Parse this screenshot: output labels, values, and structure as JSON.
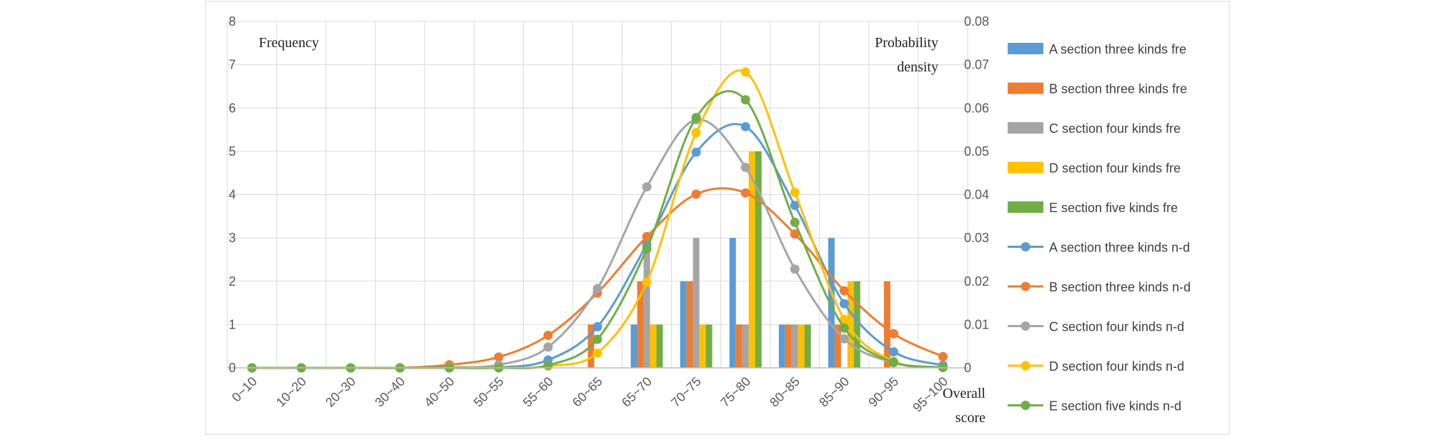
{
  "chart_data": {
    "type": "bar",
    "categories": [
      "0~10",
      "10~20",
      "20~30",
      "30~40",
      "40~50",
      "50~55",
      "55~60",
      "60~65",
      "65~70",
      "70~75",
      "75~80",
      "80~85",
      "85~90",
      "90~95",
      "95~100"
    ],
    "y_left_label": "Frequency",
    "y_right_label_line1": "Probability",
    "y_right_label_line2": "density",
    "x_label_line1": "Overall",
    "x_label_line2": "score",
    "y_left_range": [
      0,
      8
    ],
    "y_right_range": [
      0,
      0.08
    ],
    "y_left_ticks": [
      "0",
      "1",
      "2",
      "3",
      "4",
      "5",
      "6",
      "7",
      "8"
    ],
    "y_right_ticks": [
      "0",
      "0.01",
      "0.02",
      "0.03",
      "0.04",
      "0.05",
      "0.06",
      "0.07",
      "0.08"
    ],
    "grid": "on",
    "legend_position": "right",
    "bar_series": [
      {
        "name": "A section three kinds fre",
        "color": "#5B9BD5",
        "values": [
          0,
          0,
          0,
          0,
          0,
          0,
          0,
          0,
          1,
          2,
          3,
          1,
          3,
          0,
          0
        ]
      },
      {
        "name": "B section three kinds fre",
        "color": "#ED7D31",
        "values": [
          0,
          0,
          0,
          0,
          0,
          0,
          0,
          1,
          2,
          2,
          1,
          1,
          1,
          2,
          0
        ]
      },
      {
        "name": "C section four kinds fre",
        "color": "#A5A5A5",
        "values": [
          0,
          0,
          0,
          0,
          0,
          0,
          0,
          0,
          3,
          3,
          1,
          1,
          0,
          0,
          0
        ]
      },
      {
        "name": "D section four kinds fre",
        "color": "#FFC000",
        "values": [
          0,
          0,
          0,
          0,
          0,
          0,
          0,
          0,
          1,
          1,
          5,
          1,
          2,
          0,
          0
        ]
      },
      {
        "name": "E section five kinds fre",
        "color": "#70AD47",
        "values": [
          0,
          0,
          0,
          0,
          0,
          0,
          0,
          0,
          1,
          1,
          5,
          1,
          2,
          0,
          0
        ]
      }
    ],
    "line_series": [
      {
        "name": "A section three kinds n-d",
        "color": "#5B9BD5",
        "values": [
          0,
          0,
          0,
          0,
          0,
          0.0001,
          0.0018,
          0.0095,
          0.0285,
          0.0498,
          0.0557,
          0.0375,
          0.0148,
          0.0037,
          0.0006
        ]
      },
      {
        "name": "B section three kinds n-d",
        "color": "#ED7D31",
        "values": [
          0,
          0,
          0,
          0,
          0.0007,
          0.0025,
          0.0075,
          0.0173,
          0.0303,
          0.0401,
          0.0404,
          0.0309,
          0.0178,
          0.0079,
          0.0026
        ]
      },
      {
        "name": "C section four kinds n-d",
        "color": "#A5A5A5",
        "values": [
          0,
          0,
          0,
          0,
          0.0001,
          0.0007,
          0.0048,
          0.0183,
          0.0418,
          0.0573,
          0.0463,
          0.0228,
          0.0067,
          0.0012,
          0.0001
        ]
      },
      {
        "name": "D section four kinds n-d",
        "color": "#FFC000",
        "values": [
          0,
          0,
          0,
          0,
          0,
          0,
          0.0004,
          0.0034,
          0.0198,
          0.0543,
          0.0683,
          0.0405,
          0.0112,
          0.0015,
          0.0001
        ]
      },
      {
        "name": "E section five kinds n-d",
        "color": "#70AD47",
        "values": [
          0,
          0,
          0,
          0,
          0,
          0,
          0.0006,
          0.0066,
          0.0275,
          0.0578,
          0.0619,
          0.0336,
          0.0092,
          0.0013,
          0.0001
        ]
      }
    ]
  }
}
